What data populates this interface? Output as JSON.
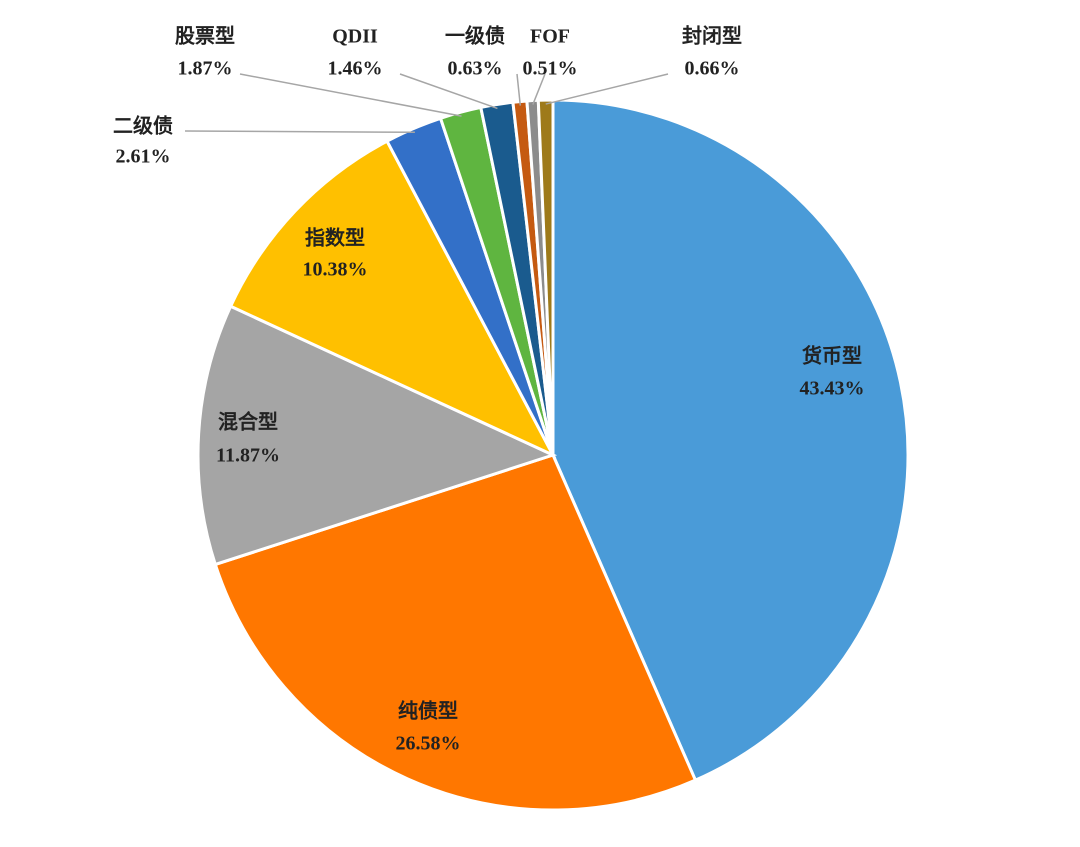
{
  "chart_data": {
    "type": "pie",
    "categories": [
      "货币型",
      "纯债型",
      "混合型",
      "指数型",
      "二级债",
      "股票型",
      "QDII",
      "一级债",
      "FOF",
      "封闭型"
    ],
    "values": [
      43.43,
      26.58,
      11.87,
      10.38,
      2.61,
      1.87,
      1.46,
      0.63,
      0.51,
      0.66
    ],
    "value_labels": [
      "43.43%",
      "26.58%",
      "11.87%",
      "10.38%",
      "2.61%",
      "1.87%",
      "1.46%",
      "0.63%",
      "0.51%",
      "0.66%"
    ],
    "colors": [
      "#4a9bd8",
      "#ff7700",
      "#a5a5a5",
      "#ffc000",
      "#3370c8",
      "#5fb540",
      "#1a5b8e",
      "#c55a11",
      "#8c8c8c",
      "#9e7a1a"
    ]
  }
}
